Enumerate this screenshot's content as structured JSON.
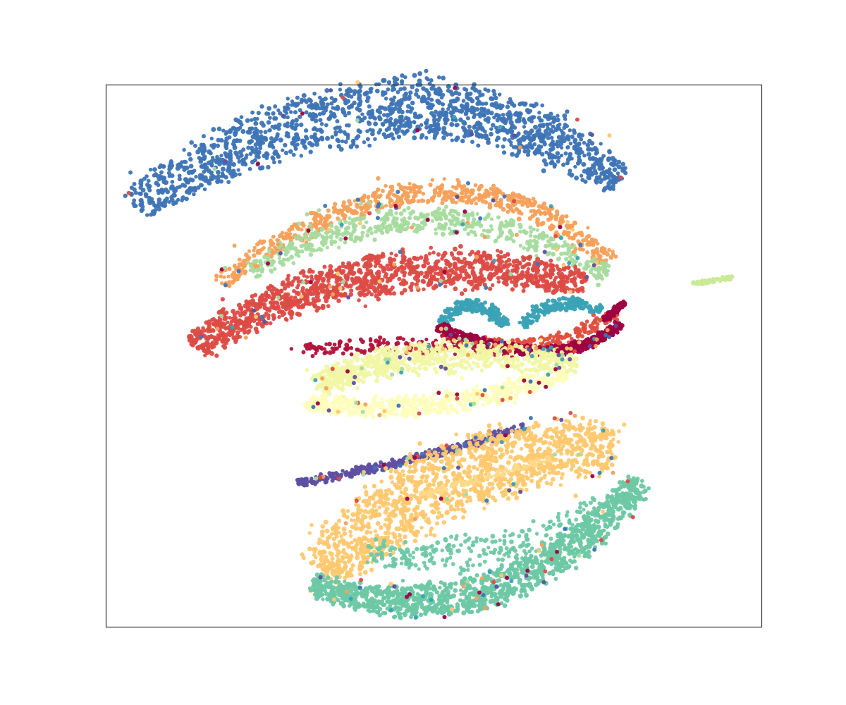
{
  "chart_data": {
    "type": "scatter",
    "title": "",
    "xlabel": "",
    "ylabel": "",
    "xlim": [
      0,
      100
    ],
    "ylim": [
      0,
      100
    ],
    "grid": false,
    "legend": "none",
    "ticks": "none",
    "series": [
      {
        "color": "#3e75b6",
        "shape": "arc",
        "from": [
          4.5,
          77.5
        ],
        "ctrl": [
          45,
          111
        ],
        "to": [
          78.5,
          82.5
        ],
        "thickness": 6.5,
        "taper": 0.45,
        "count": 1500,
        "noise": 0.8,
        "jitter": 0.55,
        "radius": 3.1,
        "opacity": 0.96
      },
      {
        "color": "#f7a05a",
        "shape": "arc",
        "from": [
          17.5,
          63.7
        ],
        "ctrl": [
          52,
          95
        ],
        "to": [
          76.5,
          67.5
        ],
        "thickness": 2.4,
        "taper": 0.2,
        "count": 650,
        "noise": 1.0,
        "jitter": 0.25,
        "radius": 3,
        "opacity": 0.95
      },
      {
        "color": "#a6db9e",
        "shape": "arc",
        "from": [
          22,
          65.5
        ],
        "ctrl": [
          50,
          85
        ],
        "to": [
          76.5,
          64.5
        ],
        "thickness": 2.6,
        "taper": 0.25,
        "count": 520,
        "noise": 1.2,
        "jitter": 0.3,
        "radius": 3,
        "opacity": 0.95
      },
      {
        "color": "#c9ea97",
        "shape": "line",
        "from": [
          89.5,
          63.3
        ],
        "to": [
          95.5,
          64.5
        ],
        "thickness": 0.35,
        "taper": 0,
        "count": 60,
        "noise": 0.1,
        "jitter": 0,
        "radius": 3,
        "opacity": 1
      },
      {
        "color": "#dd4b45",
        "shape": "arc",
        "from": [
          13.5,
          51.5
        ],
        "ctrl": [
          38,
          72
        ],
        "to": [
          73,
          63.5
        ],
        "thickness": 4.2,
        "taper": 0.35,
        "count": 1300,
        "noise": 1.1,
        "jitter": 0.55,
        "radius": 3.1,
        "opacity": 0.95
      },
      {
        "color": "#e24e3d",
        "shape": "arc",
        "from": [
          54,
          53.5
        ],
        "ctrl": [
          65,
          49
        ],
        "to": [
          78,
          58
        ],
        "thickness": 1.3,
        "taper": 0.2,
        "count": 220,
        "noise": 0.6,
        "jitter": 0.3,
        "radius": 3,
        "opacity": 0.95
      },
      {
        "color": "#3aa2b5",
        "shape": "arc",
        "from": [
          51,
          56
        ],
        "ctrl": [
          56,
          63
        ],
        "to": [
          61,
          55.5
        ],
        "thickness": 1.3,
        "taper": 0.3,
        "count": 200,
        "noise": 0.4,
        "jitter": 0.25,
        "radius": 3,
        "opacity": 0.96
      },
      {
        "color": "#3aa2b5",
        "shape": "arc",
        "from": [
          63.5,
          55.5
        ],
        "ctrl": [
          68,
          62
        ],
        "to": [
          75.5,
          58.5
        ],
        "thickness": 1.3,
        "taper": 0.3,
        "count": 180,
        "noise": 0.4,
        "jitter": 0.25,
        "radius": 3,
        "opacity": 0.96
      },
      {
        "color": "#9e0142",
        "shape": "arc",
        "from": [
          50.5,
          55.5
        ],
        "ctrl": [
          69,
          46
        ],
        "to": [
          78.5,
          56
        ],
        "thickness": 1.1,
        "taper": 0.15,
        "count": 520,
        "noise": 0.35,
        "jitter": 0.15,
        "radius": 3.1,
        "opacity": 0.97
      },
      {
        "color": "#9e0142",
        "shape": "line",
        "from": [
          76,
          56.5
        ],
        "to": [
          79,
          60
        ],
        "thickness": 0.6,
        "taper": 0,
        "count": 70,
        "noise": 0.3,
        "jitter": 0,
        "radius": 3,
        "opacity": 0.97
      },
      {
        "color": "#b2123a",
        "shape": "arc",
        "from": [
          30,
          51
        ],
        "ctrl": [
          48,
          53
        ],
        "to": [
          62,
          50.5
        ],
        "thickness": 1.6,
        "taper": 0.2,
        "count": 160,
        "noise": 1.3,
        "jitter": 0.2,
        "radius": 3,
        "opacity": 0.95
      },
      {
        "color": "#f1f7a4",
        "shape": "arc",
        "from": [
          32.5,
          44.5
        ],
        "ctrl": [
          45,
          53
        ],
        "to": [
          72,
          48.5
        ],
        "thickness": 3.2,
        "taper": 0.3,
        "count": 700,
        "noise": 1.4,
        "jitter": 0.45,
        "radius": 3.1,
        "opacity": 0.95
      },
      {
        "color": "#fefdbb",
        "shape": "arc",
        "from": [
          30.5,
          41.5
        ],
        "ctrl": [
          50,
          38
        ],
        "to": [
          70,
          47
        ],
        "thickness": 2.2,
        "taper": 0.3,
        "count": 520,
        "noise": 1.0,
        "jitter": 0.3,
        "radius": 3.1,
        "opacity": 0.97
      },
      {
        "color": "#5e4fa2",
        "shape": "arc",
        "from": [
          29,
          26.5
        ],
        "ctrl": [
          46,
          30
        ],
        "to": [
          64,
          37
        ],
        "thickness": 0.9,
        "taper": 0.1,
        "count": 360,
        "noise": 0.4,
        "jitter": 0.15,
        "radius": 3,
        "opacity": 0.97
      },
      {
        "color": "#fec86f",
        "shape": "arc",
        "from": [
          33,
          10
        ],
        "ctrl": [
          52,
          34
        ],
        "to": [
          78,
          33
        ],
        "thickness": 7.5,
        "taper": 0.35,
        "count": 1300,
        "noise": 1.5,
        "jitter": 0.5,
        "radius": 3.1,
        "opacity": 0.95
      },
      {
        "color": "#fdd98a",
        "shape": "line",
        "from": [
          47,
          24
        ],
        "to": [
          68,
          31
        ],
        "thickness": 0.7,
        "taper": 0,
        "count": 90,
        "noise": 0.6,
        "jitter": 0,
        "radius": 3,
        "opacity": 0.95
      },
      {
        "color": "#6dc8a5",
        "shape": "arc",
        "from": [
          31.5,
          8
        ],
        "ctrl": [
          60,
          -4
        ],
        "to": [
          81.5,
          27
        ],
        "thickness": 3.6,
        "taper": 0.3,
        "count": 1200,
        "noise": 0.9,
        "jitter": 0.45,
        "radius": 3.1,
        "opacity": 0.96
      },
      {
        "color": "#6dc8a5",
        "shape": "arc",
        "from": [
          40,
          14
        ],
        "ctrl": [
          62,
          10
        ],
        "to": [
          78,
          24
        ],
        "thickness": 3.8,
        "taper": 0.3,
        "count": 280,
        "noise": 2.0,
        "jitter": 0.35,
        "radius": 3,
        "opacity": 0.93
      }
    ],
    "scatter_noise": {
      "colors": [
        "#dd4b45",
        "#3e75b6",
        "#f7a05a",
        "#9e0142",
        "#5e4fa2",
        "#a6db9e",
        "#fec86f",
        "#3aa2b5"
      ],
      "count": 340,
      "radius": 3
    }
  }
}
